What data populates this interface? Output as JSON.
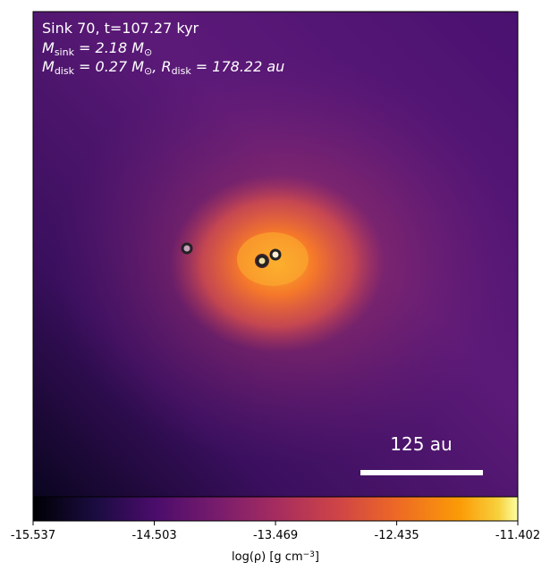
{
  "chart_data": {
    "type": "heatmap",
    "annotation": {
      "line1": "Sink 70, t=107.27 kyr",
      "line2": [
        {
          "text": "M"
        },
        {
          "sub": "sink"
        },
        {
          "text": " = 2.18 M"
        },
        {
          "sub": "⊙"
        }
      ],
      "line3": [
        {
          "text": "M"
        },
        {
          "sub": "disk"
        },
        {
          "text": " = 0.27 M"
        },
        {
          "sub": "⊙"
        },
        {
          "text": ", R"
        },
        {
          "sub": "disk"
        },
        {
          "text": " = 178.22 au"
        }
      ]
    },
    "scale_bar": "125 au",
    "colorbar": {
      "colormap": "inferno",
      "lim": [
        -15.537,
        -11.402
      ],
      "ticks": [
        -15.537,
        -14.503,
        -13.469,
        -12.435,
        -11.402
      ],
      "label": [
        {
          "text": "log(ρ) [g cm"
        },
        {
          "sup": "−3"
        },
        {
          "text": "]"
        }
      ]
    }
  }
}
